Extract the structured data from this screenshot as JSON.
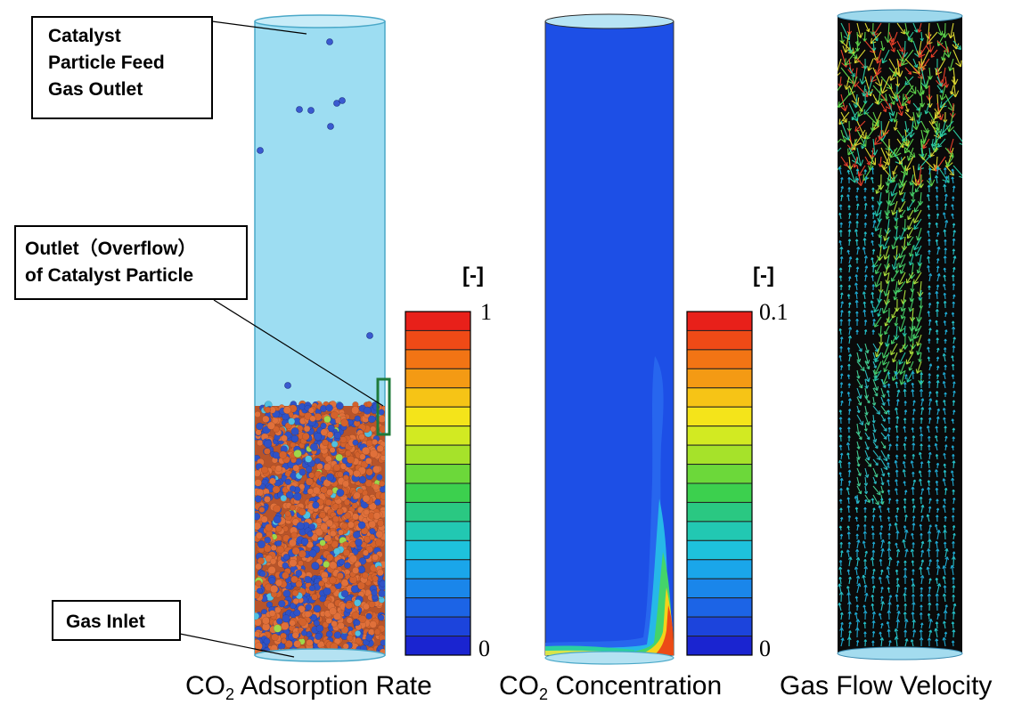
{
  "callouts": {
    "feed_line1": "Catalyst",
    "feed_line2": "Particle Feed",
    "feed_line3": "Gas Outlet",
    "outlet_line1": "Outlet（Overflow）",
    "outlet_line2": "of Catalyst Particle",
    "gas_inlet": "Gas Inlet"
  },
  "panels": {
    "adsorption": {
      "label_pre": "CO",
      "label_sub": "2",
      "label_post": " Adsorption Rate"
    },
    "concentration": {
      "label_pre": "CO",
      "label_sub": "2",
      "label_post": " Concentration"
    },
    "velocity": {
      "label": "Gas Flow Velocity"
    }
  },
  "colorbars": {
    "adsorption": {
      "unit": "[-]",
      "max": "1",
      "min": "0"
    },
    "concentration": {
      "unit": "[-]",
      "max": "0.1",
      "min": "0"
    },
    "colors": [
      "#e8201a",
      "#ef4a16",
      "#f27414",
      "#f49a14",
      "#f6c416",
      "#f4e41a",
      "#d2ea22",
      "#a6e22a",
      "#6cd83a",
      "#3cd04e",
      "#2ac882",
      "#22c8b2",
      "#1ec2dc",
      "#1aa6ea",
      "#1a86ea",
      "#1c64e6",
      "#1c44dc",
      "#1a24d0"
    ]
  },
  "colors": {
    "tube_fill": "#9dddf2",
    "tube_edge": "#4aa8c8",
    "particle_orange": "#d4622c",
    "particle_blue": "#2f52c6",
    "conc_blue": "#1d4fe6",
    "velocity_bg": "#0a0a0a",
    "overflow_marker": "#1f7a3a"
  }
}
